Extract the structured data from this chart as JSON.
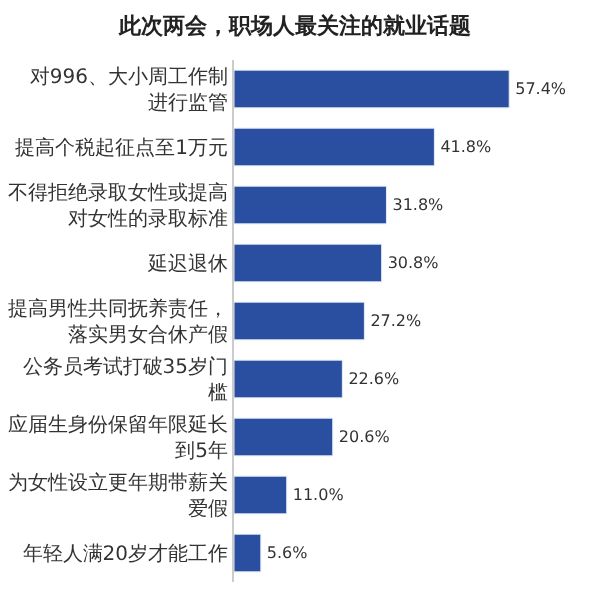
{
  "chart_data": {
    "type": "bar",
    "orientation": "horizontal",
    "title": "此次两会，职场人最关注的就业话题",
    "categories": [
      "对996、大小周工作制进行监管",
      "提高个税起征点至1万元",
      "不得拒绝录取女性或提高对女性的录取标准",
      "延迟退休",
      "提高男性共同抚养责任，落实男女合休产假",
      "公务员考试打破35岁门槛",
      "应届生身份保留年限延长到5年",
      "为女性设立更年期带薪关爱假",
      "年轻人满20岁才能工作"
    ],
    "values": [
      57.4,
      41.8,
      31.8,
      30.8,
      27.2,
      22.6,
      20.6,
      11.0,
      5.6
    ],
    "value_labels": [
      "57.4%",
      "41.8%",
      "31.8%",
      "30.8%",
      "27.2%",
      "22.6%",
      "20.6%",
      "11.0%",
      "5.6%"
    ],
    "color": "#2a4ea0"
  }
}
